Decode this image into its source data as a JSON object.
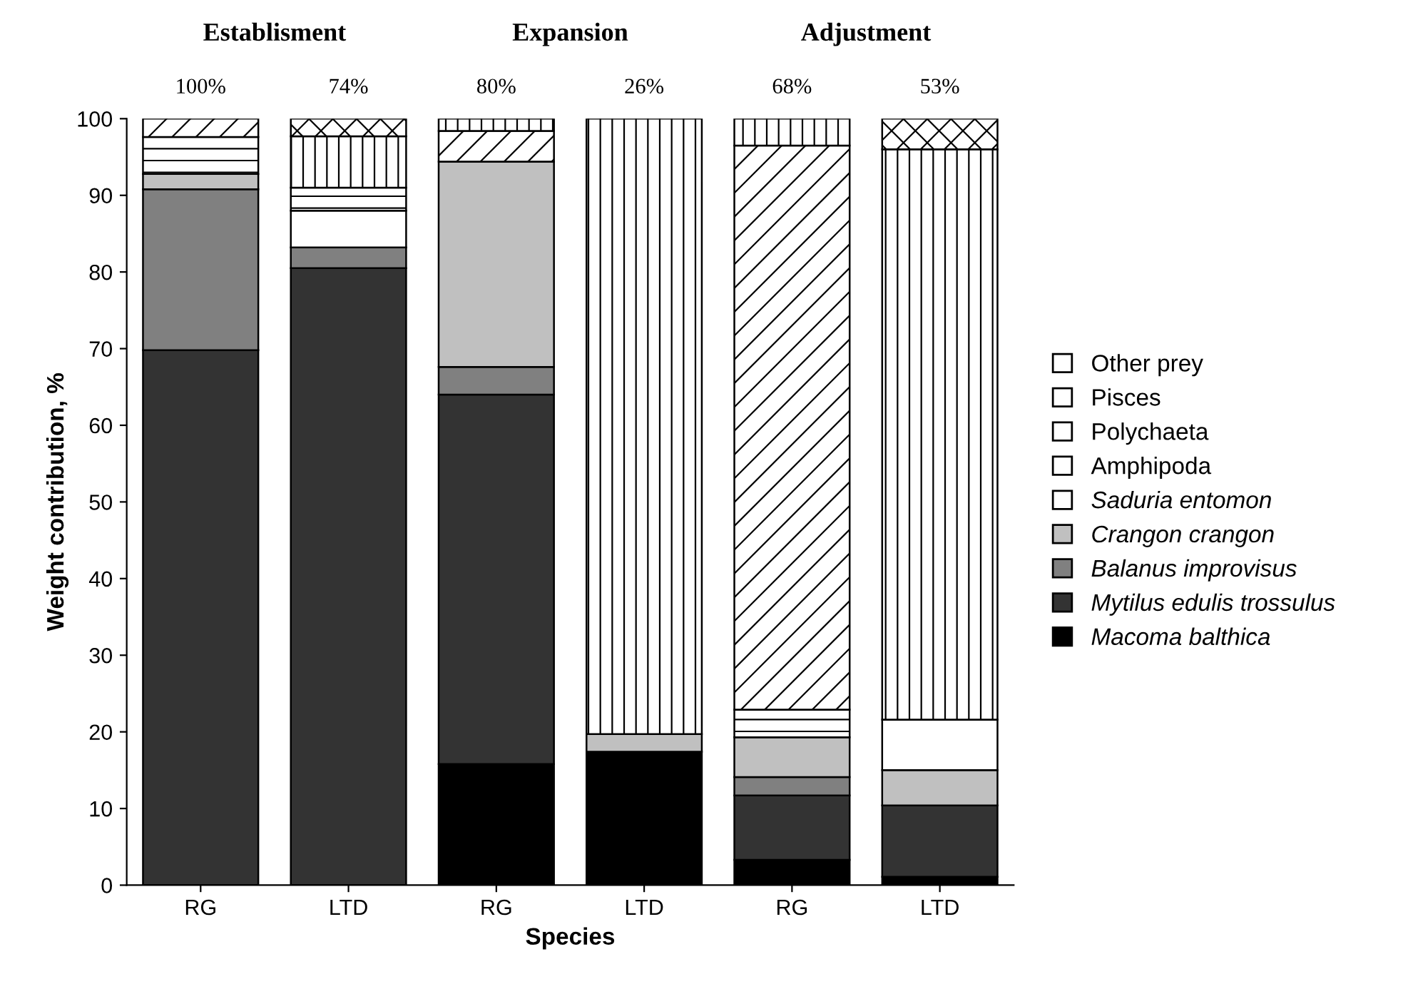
{
  "chart_data": {
    "type": "bar",
    "stacked": true,
    "xlabel": "Species",
    "ylabel": "Weight contribution, %",
    "categories": [
      "RG",
      "LTD",
      "RG",
      "LTD",
      "RG",
      "LTD"
    ],
    "series": [
      {
        "name": "Macoma balthica",
        "color": "#000000",
        "values": [
          0,
          0,
          15.8,
          17.4,
          3.3,
          1.1
        ]
      },
      {
        "name": "Mytilus edulis trossulus",
        "color": "#333333",
        "values": [
          69.8,
          80.5,
          48.2,
          0,
          8.4,
          9.3
        ]
      },
      {
        "name": "Balanus improvisus",
        "color": "#808080",
        "values": [
          21,
          2.7,
          3.6,
          0,
          2.4,
          0
        ]
      },
      {
        "name": "Crangon crangon",
        "color": "#c0c0c0",
        "values": [
          2,
          0,
          26.8,
          2.3,
          5.2,
          4.6
        ]
      },
      {
        "name": "Saduria entomon",
        "color": "#ffffff",
        "values": [
          0,
          4.8,
          0,
          0,
          0,
          6.6
        ]
      },
      {
        "name": "Amphipoda",
        "color": "#ffffff",
        "values": [
          4.8,
          3,
          0,
          0,
          3.6,
          0
        ]
      },
      {
        "name": "Polychaeta",
        "color": "#ffffff",
        "values": [
          2.4,
          0,
          4,
          0,
          73.6,
          0
        ]
      },
      {
        "name": "Pisces",
        "color": "#ffffff",
        "values": [
          0,
          6.7,
          1.6,
          80.3,
          3.5,
          74.4
        ]
      },
      {
        "name": "Other prey",
        "color": "#ffffff",
        "values": [
          0,
          2.3,
          0,
          0,
          0,
          4
        ]
      }
    ],
    "annotations": [
      "Establisment",
      "Expansion",
      "Adjustment",
      "100%",
      "74%",
      "80%",
      "26%",
      "68%",
      "53%"
    ],
    "ylim": [
      0,
      100
    ],
    "yticks": [
      0,
      10,
      20,
      30,
      40,
      50,
      60,
      70,
      80,
      90,
      100
    ],
    "grid": false,
    "legend": "right"
  }
}
